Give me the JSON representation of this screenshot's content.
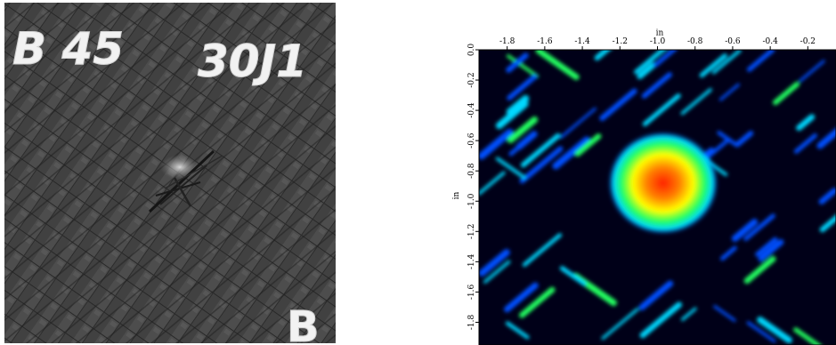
{
  "photo": {
    "specimen_label": "B 45",
    "panel_label": "30J1",
    "side_label": "B",
    "colors": {
      "background": "#4a4a4a",
      "label_paint": "#f2f2f2",
      "weave_light": "#6e6e6e",
      "weave_dark": "#2c2c2c"
    }
  },
  "cscan": {
    "x_axis_unit": "in",
    "y_axis_unit": "in",
    "x_ticks": [
      "-1.8",
      "-1.6",
      "-1.4",
      "-1.2",
      "-1.0",
      "-0.8",
      "-0.6",
      "-0.4",
      "-0.2"
    ],
    "y_ticks": [
      "0.0",
      "-0.2",
      "-0.4",
      "-0.6",
      "-0.8",
      "-1.0",
      "-1.2",
      "-1.4",
      "-1.6",
      "-1.8"
    ],
    "x_range": [
      -1.95,
      -0.05
    ],
    "y_range": [
      0.0,
      -1.95
    ],
    "colormap": [
      "#000018",
      "#0050ff",
      "#00d8ff",
      "#20ff60",
      "#ffff00",
      "#ff8000",
      "#ff2000"
    ],
    "damage_center": {
      "x": -0.97,
      "y": -0.88
    }
  }
}
